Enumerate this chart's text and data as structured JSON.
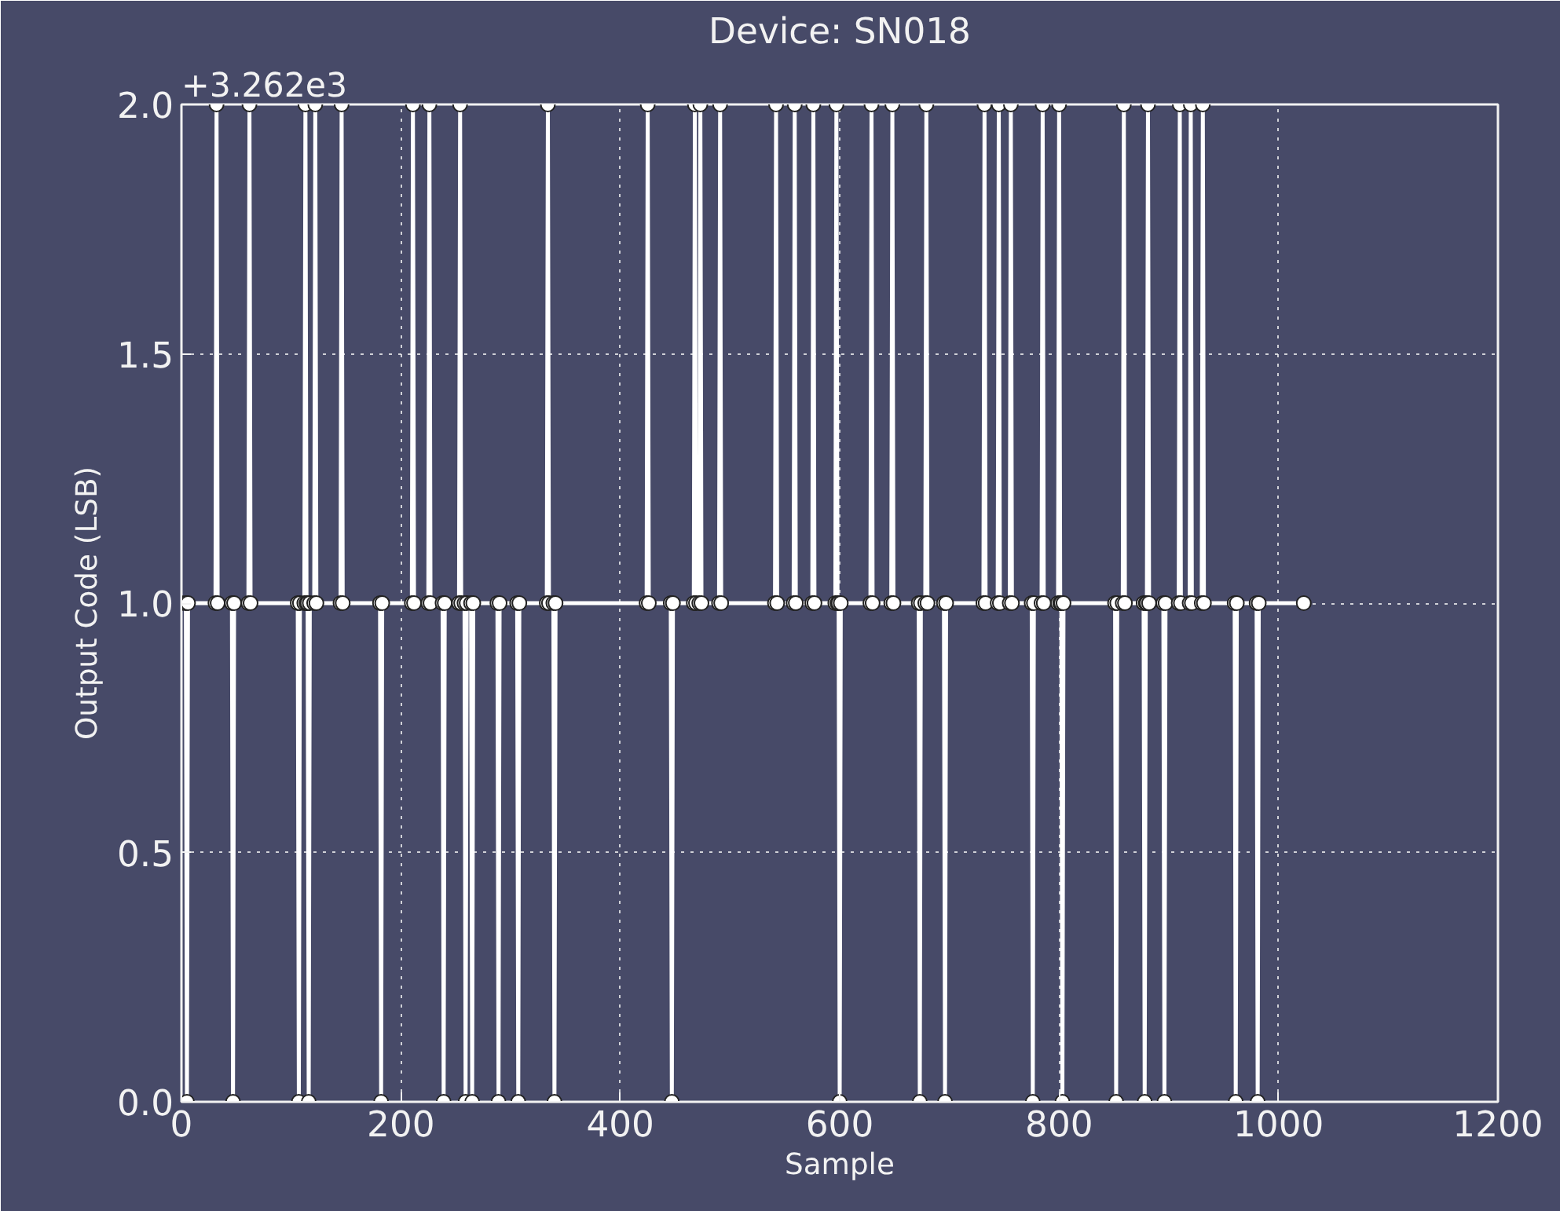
{
  "chart_data": {
    "type": "line",
    "title": "Device: SN018",
    "xlabel": "Sample",
    "ylabel": "Output Code (LSB)",
    "annotations": [
      "+3.262e3"
    ],
    "xlim": [
      0,
      1200
    ],
    "xticks": [
      0,
      200,
      400,
      600,
      800,
      1000,
      1200
    ],
    "ylim": [
      0,
      2
    ],
    "yticks": [
      {
        "value": 0,
        "label": "0.0"
      },
      {
        "value": 0.5,
        "label": "0.5"
      },
      {
        "value": 1,
        "label": "1.0"
      },
      {
        "value": 1.5,
        "label": "1.5"
      },
      {
        "value": 2,
        "label": "2.0"
      }
    ],
    "grid": true,
    "marker": "circle",
    "line_style": "solid",
    "series": [
      {
        "color": "#ffffff",
        "x": [
          0,
          4,
          5,
          6,
          31,
          32,
          33,
          46,
          47,
          48,
          61,
          62,
          63,
          106,
          107,
          108,
          112,
          113,
          114,
          115,
          116,
          117,
          121,
          122,
          123,
          145,
          146,
          147,
          181,
          182,
          183,
          210,
          211,
          212,
          225,
          226,
          227,
          238,
          239,
          240,
          253,
          254,
          255,
          258,
          259,
          260,
          264,
          265,
          266,
          288,
          289,
          290,
          306,
          307,
          308,
          333,
          334,
          335,
          339,
          340,
          341,
          424,
          425,
          426,
          446,
          447,
          448,
          467,
          468,
          469,
          472,
          473,
          474,
          490,
          491,
          492,
          541,
          542,
          543,
          558,
          559,
          560,
          575,
          576,
          577,
          596,
          597,
          598,
          599,
          600,
          601,
          628,
          629,
          630,
          647,
          648,
          649,
          672,
          673,
          674,
          678,
          679,
          680,
          695,
          696,
          697,
          731,
          732,
          733,
          744,
          745,
          746,
          755,
          756,
          757,
          775,
          776,
          777,
          784,
          785,
          786,
          799,
          800,
          801,
          802,
          803,
          804,
          851,
          852,
          853,
          858,
          859,
          860,
          877,
          878,
          879,
          880,
          881,
          882,
          895,
          896,
          897,
          909,
          910,
          911,
          919,
          920,
          921,
          930,
          931,
          932,
          960,
          961,
          962,
          980,
          981,
          982,
          1023
        ],
        "values": [
          1,
          1,
          0,
          1,
          1,
          2,
          1,
          1,
          0,
          1,
          1,
          2,
          1,
          1,
          0,
          1,
          1,
          2,
          1,
          1,
          0,
          1,
          1,
          2,
          1,
          1,
          2,
          1,
          1,
          0,
          1,
          1,
          2,
          1,
          1,
          2,
          1,
          1,
          0,
          1,
          1,
          2,
          1,
          1,
          0,
          1,
          1,
          0,
          1,
          1,
          0,
          1,
          1,
          0,
          1,
          1,
          2,
          1,
          1,
          0,
          1,
          1,
          2,
          1,
          1,
          0,
          1,
          1,
          2,
          1,
          1,
          2,
          1,
          1,
          2,
          1,
          1,
          2,
          1,
          1,
          2,
          1,
          1,
          2,
          1,
          1,
          2,
          1,
          1,
          0,
          1,
          1,
          2,
          1,
          1,
          2,
          1,
          1,
          0,
          1,
          1,
          2,
          1,
          1,
          0,
          1,
          1,
          2,
          1,
          1,
          2,
          1,
          1,
          2,
          1,
          1,
          0,
          1,
          1,
          2,
          1,
          1,
          2,
          1,
          1,
          0,
          1,
          1,
          0,
          1,
          1,
          2,
          1,
          1,
          0,
          1,
          1,
          2,
          1,
          1,
          0,
          1,
          1,
          2,
          1,
          1,
          2,
          1,
          1,
          2,
          1,
          1,
          0,
          1,
          1,
          0,
          1,
          1
        ]
      }
    ]
  }
}
